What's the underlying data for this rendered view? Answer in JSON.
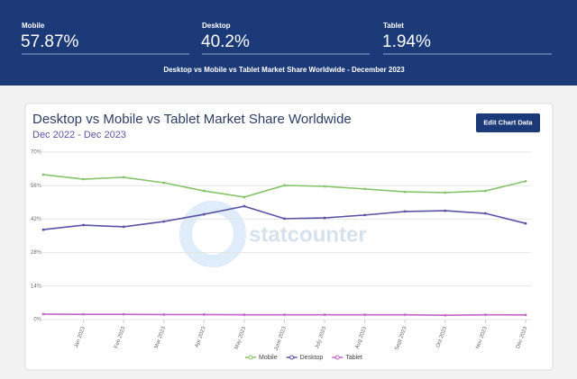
{
  "header": {
    "stats": [
      {
        "label": "Mobile",
        "value": "57.87%"
      },
      {
        "label": "Desktop",
        "value": "40.2%"
      },
      {
        "label": "Tablet",
        "value": "1.94%"
      }
    ],
    "caption": "Desktop vs Mobile vs Tablet Market Share Worldwide - December 2023"
  },
  "button": "Edit Chart Data",
  "watermark": "statcounter",
  "chart_data": {
    "type": "line",
    "title": "Desktop vs Mobile vs Tablet Market Share Worldwide",
    "subtitle": "Dec 2022 - Dec 2023",
    "categories": [
      null,
      "Jan 2023",
      "Feb 2023",
      "Mar 2023",
      "Apr 2023",
      "May 2023",
      "June 2023",
      "July 2023",
      "Aug 2023",
      "Sept 2023",
      "Oct 2023",
      "Nov 2023",
      "Dec 2023"
    ],
    "series": [
      {
        "name": "Mobile",
        "color": "#86c46a",
        "values": [
          60.6,
          58.7,
          59.5,
          57.2,
          53.8,
          51.2,
          56.1,
          55.7,
          54.6,
          53.4,
          53.1,
          53.8,
          57.87
        ]
      },
      {
        "name": "Desktop",
        "color": "#5a52a5",
        "values": [
          37.6,
          39.5,
          38.8,
          41.0,
          44.0,
          47.4,
          42.2,
          42.5,
          43.7,
          45.2,
          45.5,
          44.4,
          40.2
        ]
      },
      {
        "name": "Tablet",
        "color": "#c463c8",
        "values": [
          2.3,
          2.2,
          2.2,
          2.1,
          2.1,
          2.0,
          2.0,
          2.0,
          2.0,
          2.0,
          1.8,
          2.0,
          1.94
        ]
      }
    ],
    "ylim": [
      0,
      70
    ],
    "yticks": [
      {
        "value": 0,
        "label": "0%"
      },
      {
        "value": 14,
        "label": "14%"
      },
      {
        "value": 28,
        "label": "28%"
      },
      {
        "value": 42,
        "label": "42%"
      },
      {
        "value": 56,
        "label": "56%"
      },
      {
        "value": 70,
        "label": "70%"
      }
    ],
    "grid": true,
    "legend": "bottom"
  }
}
